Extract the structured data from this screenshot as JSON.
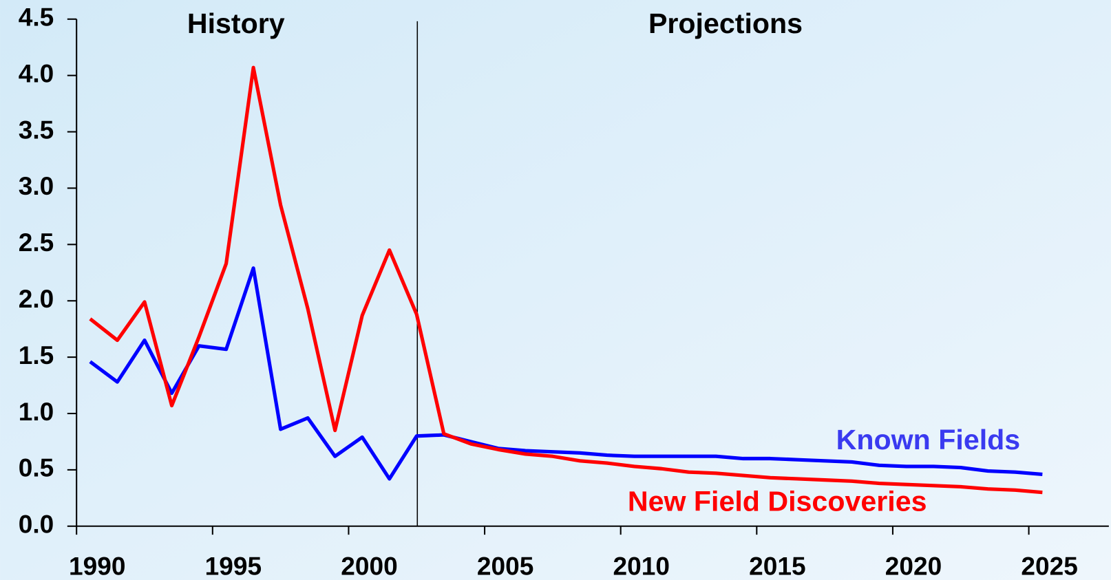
{
  "chart_data": {
    "type": "line",
    "annotations": [
      "History",
      "Projections"
    ],
    "categories": [
      1990,
      null,
      null,
      null,
      null,
      1995,
      null,
      null,
      null,
      null,
      2000,
      null,
      null,
      null,
      null,
      2005,
      null,
      null,
      null,
      null,
      2010,
      null,
      null,
      null,
      null,
      2015,
      null,
      null,
      null,
      null,
      2020,
      null,
      null,
      null,
      null,
      2025
    ],
    "series": [
      {
        "name": "Known Fields",
        "color": "#0000ff",
        "label_color": "#3a3af0",
        "values": [
          1.46,
          1.28,
          1.65,
          1.18,
          1.6,
          1.57,
          2.29,
          0.86,
          0.96,
          0.62,
          0.79,
          0.42,
          0.8,
          0.81,
          0.75,
          0.69,
          0.67,
          0.66,
          0.65,
          0.63,
          0.62,
          0.62,
          0.62,
          0.62,
          0.6,
          0.6,
          0.59,
          0.58,
          0.57,
          0.54,
          0.53,
          0.53,
          0.52,
          0.49,
          0.48,
          0.46
        ]
      },
      {
        "name": "New Field Discoveries",
        "color": "#ff0000",
        "label_color": "#ff0000",
        "values": [
          1.84,
          1.65,
          1.99,
          1.07,
          1.68,
          2.33,
          4.07,
          2.85,
          1.93,
          0.85,
          1.87,
          2.45,
          1.88,
          0.82,
          0.73,
          0.68,
          0.64,
          0.62,
          0.58,
          0.56,
          0.53,
          0.51,
          0.48,
          0.47,
          0.45,
          0.43,
          0.42,
          0.41,
          0.4,
          0.38,
          0.37,
          0.36,
          0.35,
          0.33,
          0.32,
          0.3
        ]
      }
    ],
    "ylim": [
      0,
      4.5
    ],
    "yticks": [
      {
        "value": 0,
        "label": "0.0"
      },
      0.5,
      {
        "value": 1,
        "label": "1.0"
      },
      1.5,
      {
        "value": 2,
        "label": "2.0"
      },
      2.5,
      {
        "value": 3,
        "label": "3.0"
      },
      3.5,
      {
        "value": 4,
        "label": "4.0"
      },
      4.5
    ],
    "grid": false
  }
}
